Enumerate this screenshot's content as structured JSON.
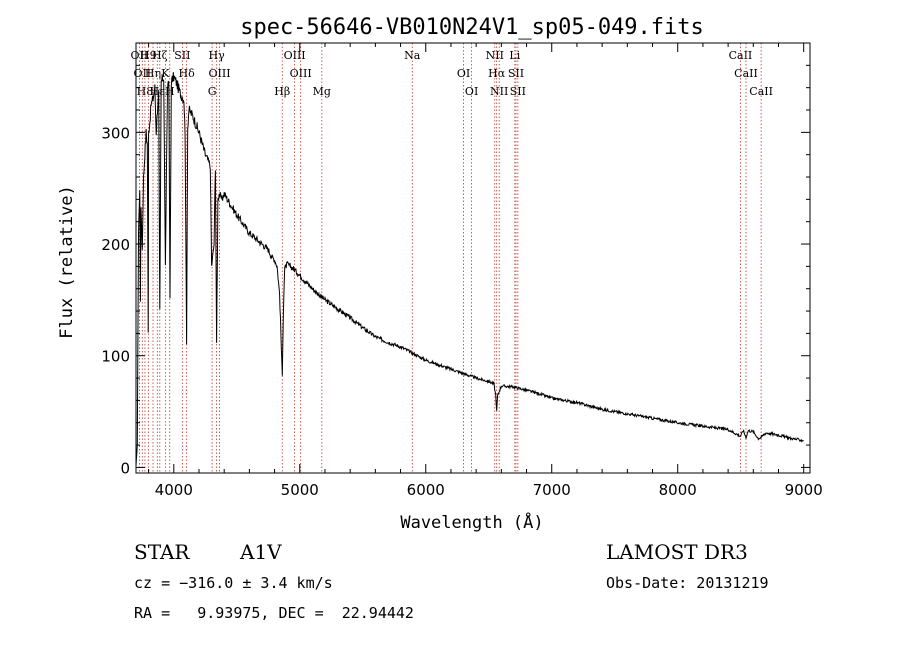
{
  "chart_data": {
    "type": "line",
    "title": "spec-56646-VB010N24V1_sp05-049.fits",
    "xlabel": "Wavelength (Å)",
    "ylabel": "Flux (relative)",
    "xlim": [
      3700,
      9050
    ],
    "ylim": [
      -5,
      380
    ],
    "xticks": [
      4000,
      5000,
      6000,
      7000,
      8000,
      9000
    ],
    "yticks": [
      0,
      100,
      200,
      300
    ],
    "series": [
      {
        "name": "flux",
        "x": [
          3700,
          3710,
          3720,
          3730,
          3735,
          3740,
          3750,
          3760,
          3770,
          3780,
          3790,
          3797,
          3800,
          3810,
          3820,
          3835,
          3850,
          3860,
          3870,
          3880,
          3889,
          3900,
          3920,
          3933,
          3950,
          3960,
          3970,
          3980,
          4000,
          4020,
          4050,
          4080,
          4090,
          4102,
          4110,
          4120,
          4150,
          4200,
          4250,
          4290,
          4300,
          4320,
          4330,
          4340,
          4350,
          4360,
          4380,
          4400,
          4500,
          4600,
          4700,
          4750,
          4780,
          4800,
          4820,
          4840,
          4850,
          4861,
          4870,
          4880,
          4900,
          4950,
          5000,
          5100,
          5200,
          5300,
          5400,
          5500,
          5600,
          5700,
          5800,
          5900,
          6000,
          6100,
          6200,
          6300,
          6400,
          6500,
          6540,
          6555,
          6563,
          6570,
          6600,
          6700,
          6800,
          6900,
          7000,
          7200,
          7400,
          7600,
          7800,
          8000,
          8200,
          8400,
          8498,
          8520,
          8542,
          8560,
          8600,
          8640,
          8662,
          8700,
          8800,
          8900,
          9000
        ],
        "y": [
          0,
          20,
          210,
          250,
          150,
          230,
          195,
          260,
          280,
          300,
          290,
          120,
          300,
          310,
          325,
          330,
          340,
          300,
          320,
          335,
          140,
          345,
          350,
          180,
          340,
          350,
          150,
          345,
          350,
          345,
          335,
          330,
          300,
          110,
          305,
          320,
          315,
          300,
          280,
          270,
          180,
          200,
          270,
          110,
          240,
          245,
          240,
          245,
          226,
          210,
          200,
          195,
          188,
          186,
          180,
          155,
          120,
          82,
          140,
          178,
          182,
          178,
          172,
          160,
          150,
          142,
          134,
          125,
          117,
          112,
          108,
          102,
          96,
          92,
          88,
          84,
          80,
          77,
          75,
          65,
          50,
          64,
          73,
          72,
          69,
          66,
          62,
          58,
          52,
          48,
          44,
          40,
          37,
          34,
          28,
          33,
          27,
          33,
          32,
          26,
          27,
          31,
          29,
          26,
          24
        ]
      }
    ],
    "line_ids": [
      {
        "wave": 3727,
        "label": "OII"
      },
      {
        "wave": 3750,
        "label": "OII"
      },
      {
        "wave": 3771,
        "label": "H8"
      },
      {
        "wave": 3798,
        "label": "H9"
      },
      {
        "wave": 3835,
        "label": "Hη"
      },
      {
        "wave": 3869,
        "label": "Hε"
      },
      {
        "wave": 3889,
        "label": "Hζ"
      },
      {
        "wave": 3933,
        "label": "K"
      },
      {
        "wave": 3968,
        "label": "H"
      },
      {
        "wave": 4068,
        "label": "SII"
      },
      {
        "wave": 4102,
        "label": "Hδ"
      },
      {
        "wave": 4304,
        "label": "G"
      },
      {
        "wave": 4340,
        "label": "Hγ"
      },
      {
        "wave": 4363,
        "label": "OIII"
      },
      {
        "wave": 4861,
        "label": "Hβ"
      },
      {
        "wave": 4959,
        "label": "OIII"
      },
      {
        "wave": 5007,
        "label": "OIII"
      },
      {
        "wave": 5175,
        "label": "Mg"
      },
      {
        "wave": 5893,
        "label": "Na"
      },
      {
        "wave": 6300,
        "label": "OI"
      },
      {
        "wave": 6364,
        "label": "OI"
      },
      {
        "wave": 6548,
        "label": "NII"
      },
      {
        "wave": 6563,
        "label": "Hα"
      },
      {
        "wave": 6583,
        "label": "NII"
      },
      {
        "wave": 6707,
        "label": "Li"
      },
      {
        "wave": 6716,
        "label": "SII"
      },
      {
        "wave": 6731,
        "label": "SII"
      },
      {
        "wave": 8498,
        "label": "CaII"
      },
      {
        "wave": 8542,
        "label": "CaII"
      },
      {
        "wave": 8662,
        "label": "CaII"
      }
    ]
  },
  "info": {
    "class": "STAR",
    "subclass": "A1V",
    "survey": "LAMOST DR3",
    "cz": "cz = −316.0 ± 3.4 km/s",
    "obs_date": "Obs-Date: 20131219",
    "radec": "RA =   9.93975, DEC =  22.94442"
  }
}
